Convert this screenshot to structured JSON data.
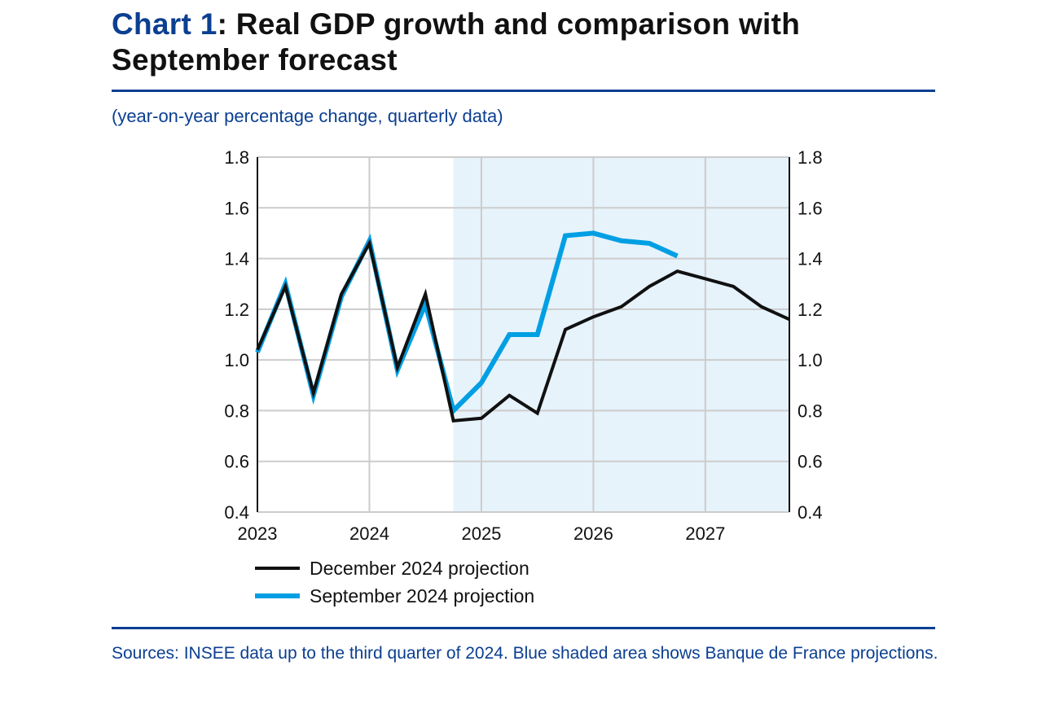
{
  "title": {
    "number": "Chart 1",
    "text": ": Real GDP growth and comparison with September forecast"
  },
  "subtitle": "(year-on-year percentage change, quarterly data)",
  "source": "Sources: INSEE data up to the third quarter of 2024. Blue shaded area shows Banque de France projections.",
  "colors": {
    "accent": "#0b3f91",
    "december": "#111111",
    "september": "#009fe3",
    "shade": "#e6f3fb"
  },
  "chart_data": {
    "type": "line",
    "x": [
      "2023Q1",
      "2023Q2",
      "2023Q3",
      "2023Q4",
      "2024Q1",
      "2024Q2",
      "2024Q3",
      "2024Q4",
      "2025Q1",
      "2025Q2",
      "2025Q3",
      "2025Q4",
      "2026Q1",
      "2026Q2",
      "2026Q3",
      "2026Q4",
      "2027Q1",
      "2027Q2",
      "2027Q3",
      "2027Q4"
    ],
    "x_tick_labels": [
      "2023",
      "2024",
      "2025",
      "2026",
      "2027"
    ],
    "y_tick_labels": [
      "0.4",
      "0.6",
      "0.8",
      "1.0",
      "1.2",
      "1.4",
      "1.6",
      "1.8"
    ],
    "ylim": [
      0.4,
      1.8
    ],
    "grid": true,
    "dual_y_axis": true,
    "shaded_region": {
      "from": "2024Q4",
      "to": "2027Q4"
    },
    "legend_position": "bottom",
    "series": [
      {
        "name": "December 2024 projection",
        "color": "#111111",
        "values": [
          1.04,
          1.29,
          0.87,
          1.26,
          1.46,
          0.97,
          1.26,
          0.76,
          0.77,
          0.86,
          0.79,
          1.12,
          1.17,
          1.21,
          1.29,
          1.35,
          1.32,
          1.29,
          1.21,
          1.16
        ]
      },
      {
        "name": "September 2024 projection",
        "color": "#009fe3",
        "values": [
          1.03,
          1.3,
          0.86,
          1.25,
          1.47,
          0.96,
          1.22,
          0.8,
          0.91,
          1.1,
          1.1,
          1.49,
          1.5,
          1.47,
          1.46,
          1.41,
          null,
          null,
          null,
          null
        ]
      }
    ]
  }
}
